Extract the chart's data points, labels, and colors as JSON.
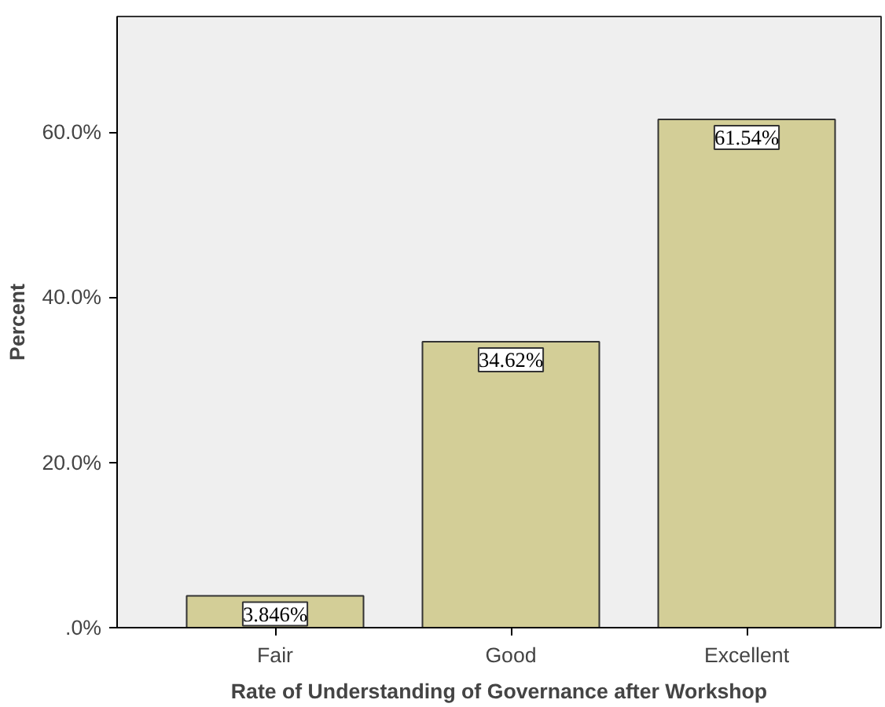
{
  "chart_data": {
    "type": "bar",
    "xlabel": "Rate of Understanding of Governance after Workshop",
    "ylabel": "Percent",
    "categories": [
      "Fair",
      "Good",
      "Excellent"
    ],
    "values": [
      3.846,
      34.62,
      61.54
    ],
    "value_labels": [
      "3.846%",
      "34.62%",
      "61.54%"
    ],
    "color": "#d3ce97",
    "ylim": [
      0,
      74
    ],
    "yticks": [
      {
        "value": 0,
        "label": ".0%"
      },
      {
        "value": 20,
        "label": "20.0%"
      },
      {
        "value": 40,
        "label": "40.0%"
      },
      {
        "value": 60,
        "label": "60.0%"
      }
    ],
    "grid": false
  }
}
